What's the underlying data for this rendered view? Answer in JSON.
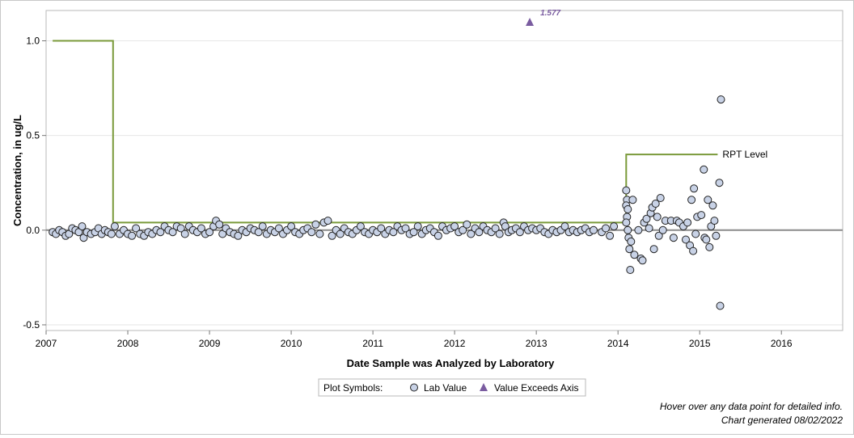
{
  "chart_data": {
    "type": "scatter",
    "xlabel": "Date Sample was Analyzed by Laboratory",
    "ylabel": "Concentration, in ug/L",
    "xlim": [
      2007.0,
      2016.75
    ],
    "ylim": [
      -0.53,
      1.16
    ],
    "x_ticks": [
      "2007",
      "2008",
      "2009",
      "2010",
      "2011",
      "2012",
      "2013",
      "2014",
      "2015",
      "2016"
    ],
    "y_ticks": [
      "-0.5",
      "0.0",
      "0.5",
      "1.0"
    ],
    "zero_line": 0.0,
    "grid": "horizontal",
    "series": [
      {
        "name": "RPT Level",
        "kind": "step-line",
        "color": "#7a9a3a",
        "points": [
          [
            2007.08,
            1.0
          ],
          [
            2007.82,
            1.0
          ],
          [
            2007.82,
            0.04
          ],
          [
            2014.1,
            0.04
          ],
          [
            2014.1,
            0.4
          ],
          [
            2015.22,
            0.4
          ]
        ]
      },
      {
        "name": "Lab Value",
        "kind": "markers",
        "marker": "circle",
        "fill": "#c8d2e6",
        "stroke": "#222222",
        "points": [
          [
            2007.08,
            -0.01
          ],
          [
            2007.12,
            -0.02
          ],
          [
            2007.16,
            0.0
          ],
          [
            2007.2,
            -0.01
          ],
          [
            2007.24,
            -0.03
          ],
          [
            2007.28,
            -0.02
          ],
          [
            2007.32,
            0.01
          ],
          [
            2007.36,
            0.0
          ],
          [
            2007.4,
            -0.01
          ],
          [
            2007.44,
            0.02
          ],
          [
            2007.46,
            -0.04
          ],
          [
            2007.5,
            -0.01
          ],
          [
            2007.55,
            -0.02
          ],
          [
            2007.6,
            -0.01
          ],
          [
            2007.64,
            0.01
          ],
          [
            2007.68,
            -0.02
          ],
          [
            2007.72,
            0.0
          ],
          [
            2007.76,
            -0.01
          ],
          [
            2007.8,
            -0.02
          ],
          [
            2007.84,
            0.02
          ],
          [
            2007.9,
            -0.02
          ],
          [
            2007.95,
            0.0
          ],
          [
            2008.0,
            -0.02
          ],
          [
            2008.05,
            -0.03
          ],
          [
            2008.1,
            0.01
          ],
          [
            2008.15,
            -0.02
          ],
          [
            2008.2,
            -0.03
          ],
          [
            2008.25,
            -0.01
          ],
          [
            2008.3,
            -0.02
          ],
          [
            2008.35,
            0.0
          ],
          [
            2008.4,
            -0.01
          ],
          [
            2008.45,
            0.02
          ],
          [
            2008.5,
            0.0
          ],
          [
            2008.55,
            -0.01
          ],
          [
            2008.6,
            0.02
          ],
          [
            2008.65,
            0.01
          ],
          [
            2008.7,
            -0.02
          ],
          [
            2008.75,
            0.02
          ],
          [
            2008.8,
            0.0
          ],
          [
            2008.85,
            -0.01
          ],
          [
            2008.9,
            0.01
          ],
          [
            2008.95,
            -0.02
          ],
          [
            2009.0,
            -0.01
          ],
          [
            2009.05,
            0.02
          ],
          [
            2009.08,
            0.05
          ],
          [
            2009.12,
            0.03
          ],
          [
            2009.16,
            -0.02
          ],
          [
            2009.2,
            0.01
          ],
          [
            2009.25,
            -0.01
          ],
          [
            2009.3,
            -0.02
          ],
          [
            2009.35,
            -0.03
          ],
          [
            2009.4,
            0.0
          ],
          [
            2009.45,
            -0.01
          ],
          [
            2009.5,
            0.01
          ],
          [
            2009.55,
            0.0
          ],
          [
            2009.6,
            -0.01
          ],
          [
            2009.65,
            0.02
          ],
          [
            2009.7,
            -0.02
          ],
          [
            2009.75,
            0.0
          ],
          [
            2009.8,
            -0.01
          ],
          [
            2009.85,
            0.01
          ],
          [
            2009.9,
            -0.02
          ],
          [
            2009.95,
            0.0
          ],
          [
            2010.0,
            0.02
          ],
          [
            2010.05,
            -0.01
          ],
          [
            2010.1,
            -0.02
          ],
          [
            2010.15,
            0.0
          ],
          [
            2010.2,
            0.01
          ],
          [
            2010.25,
            -0.01
          ],
          [
            2010.3,
            0.03
          ],
          [
            2010.35,
            -0.02
          ],
          [
            2010.4,
            0.04
          ],
          [
            2010.45,
            0.05
          ],
          [
            2010.5,
            -0.03
          ],
          [
            2010.55,
            0.0
          ],
          [
            2010.6,
            -0.02
          ],
          [
            2010.65,
            0.01
          ],
          [
            2010.7,
            -0.01
          ],
          [
            2010.75,
            -0.02
          ],
          [
            2010.8,
            0.0
          ],
          [
            2010.85,
            0.02
          ],
          [
            2010.9,
            -0.01
          ],
          [
            2010.95,
            -0.02
          ],
          [
            2011.0,
            0.0
          ],
          [
            2011.05,
            -0.01
          ],
          [
            2011.1,
            0.01
          ],
          [
            2011.15,
            -0.02
          ],
          [
            2011.2,
            0.0
          ],
          [
            2011.25,
            -0.01
          ],
          [
            2011.3,
            0.02
          ],
          [
            2011.35,
            0.0
          ],
          [
            2011.4,
            0.01
          ],
          [
            2011.45,
            -0.02
          ],
          [
            2011.5,
            -0.01
          ],
          [
            2011.55,
            0.02
          ],
          [
            2011.6,
            -0.02
          ],
          [
            2011.65,
            0.0
          ],
          [
            2011.7,
            0.01
          ],
          [
            2011.75,
            -0.01
          ],
          [
            2011.8,
            -0.03
          ],
          [
            2011.85,
            0.02
          ],
          [
            2011.9,
            0.0
          ],
          [
            2011.95,
            0.01
          ],
          [
            2012.0,
            0.02
          ],
          [
            2012.05,
            -0.01
          ],
          [
            2012.1,
            0.0
          ],
          [
            2012.15,
            0.03
          ],
          [
            2012.2,
            -0.02
          ],
          [
            2012.25,
            0.01
          ],
          [
            2012.3,
            -0.01
          ],
          [
            2012.35,
            0.02
          ],
          [
            2012.4,
            0.0
          ],
          [
            2012.45,
            -0.01
          ],
          [
            2012.5,
            0.01
          ],
          [
            2012.55,
            -0.02
          ],
          [
            2012.6,
            0.04
          ],
          [
            2012.62,
            0.02
          ],
          [
            2012.66,
            -0.01
          ],
          [
            2012.7,
            0.0
          ],
          [
            2012.75,
            0.01
          ],
          [
            2012.8,
            -0.01
          ],
          [
            2012.85,
            0.02
          ],
          [
            2012.9,
            0.0
          ],
          [
            2012.95,
            0.01
          ],
          [
            2013.0,
            0.0
          ],
          [
            2013.05,
            0.01
          ],
          [
            2013.1,
            -0.01
          ],
          [
            2013.15,
            -0.02
          ],
          [
            2013.2,
            0.0
          ],
          [
            2013.25,
            -0.01
          ],
          [
            2013.3,
            0.0
          ],
          [
            2013.35,
            0.02
          ],
          [
            2013.4,
            -0.01
          ],
          [
            2013.45,
            0.0
          ],
          [
            2013.5,
            -0.01
          ],
          [
            2013.55,
            0.0
          ],
          [
            2013.6,
            0.01
          ],
          [
            2013.65,
            -0.01
          ],
          [
            2013.7,
            0.0
          ],
          [
            2013.8,
            -0.01
          ],
          [
            2013.85,
            0.01
          ],
          [
            2013.9,
            -0.03
          ],
          [
            2013.95,
            0.02
          ],
          [
            2014.1,
            0.21
          ],
          [
            2014.11,
            0.16
          ],
          [
            2014.1,
            0.13
          ],
          [
            2014.12,
            0.11
          ],
          [
            2014.11,
            0.07
          ],
          [
            2014.1,
            0.04
          ],
          [
            2014.12,
            0.0
          ],
          [
            2014.13,
            -0.04
          ],
          [
            2014.14,
            -0.1
          ],
          [
            2014.15,
            -0.21
          ],
          [
            2014.16,
            -0.06
          ],
          [
            2014.18,
            0.16
          ],
          [
            2014.2,
            -0.13
          ],
          [
            2014.25,
            0.0
          ],
          [
            2014.28,
            -0.15
          ],
          [
            2014.3,
            -0.16
          ],
          [
            2014.32,
            0.04
          ],
          [
            2014.35,
            0.06
          ],
          [
            2014.38,
            0.01
          ],
          [
            2014.4,
            0.09
          ],
          [
            2014.42,
            0.12
          ],
          [
            2014.44,
            -0.1
          ],
          [
            2014.46,
            0.14
          ],
          [
            2014.48,
            0.07
          ],
          [
            2014.5,
            -0.03
          ],
          [
            2014.52,
            0.17
          ],
          [
            2014.55,
            0.0
          ],
          [
            2014.58,
            0.05
          ],
          [
            2014.65,
            0.05
          ],
          [
            2014.68,
            -0.04
          ],
          [
            2014.72,
            0.05
          ],
          [
            2014.75,
            0.04
          ],
          [
            2014.8,
            0.02
          ],
          [
            2014.83,
            -0.05
          ],
          [
            2014.85,
            0.04
          ],
          [
            2014.88,
            -0.08
          ],
          [
            2014.9,
            0.16
          ],
          [
            2014.92,
            -0.11
          ],
          [
            2014.93,
            0.22
          ],
          [
            2014.95,
            -0.02
          ],
          [
            2014.97,
            0.07
          ],
          [
            2015.02,
            0.08
          ],
          [
            2015.05,
            0.32
          ],
          [
            2015.06,
            -0.04
          ],
          [
            2015.08,
            -0.05
          ],
          [
            2015.1,
            0.16
          ],
          [
            2015.12,
            -0.09
          ],
          [
            2015.14,
            0.02
          ],
          [
            2015.16,
            0.13
          ],
          [
            2015.18,
            0.05
          ],
          [
            2015.2,
            -0.03
          ],
          [
            2015.24,
            0.25
          ],
          [
            2015.26,
            0.69
          ],
          [
            2015.25,
            -0.4
          ]
        ]
      },
      {
        "name": "Value Exceeds Axis",
        "kind": "markers",
        "marker": "triangle",
        "fill": "#7a5ca0",
        "points": [
          [
            2012.92,
            1.1
          ]
        ],
        "labels": [
          "1.577"
        ]
      }
    ],
    "annotations": [
      "RPT Level"
    ],
    "legend": {
      "position": "bottom-center",
      "title": "Plot Symbols:",
      "items": [
        {
          "label": "Lab Value",
          "marker": "circle"
        },
        {
          "label": "Value Exceeds Axis",
          "marker": "triangle"
        }
      ]
    }
  },
  "footer": {
    "hover_note": "Hover over any data point for detailed info.",
    "generated": "Chart generated 08/02/2022"
  }
}
